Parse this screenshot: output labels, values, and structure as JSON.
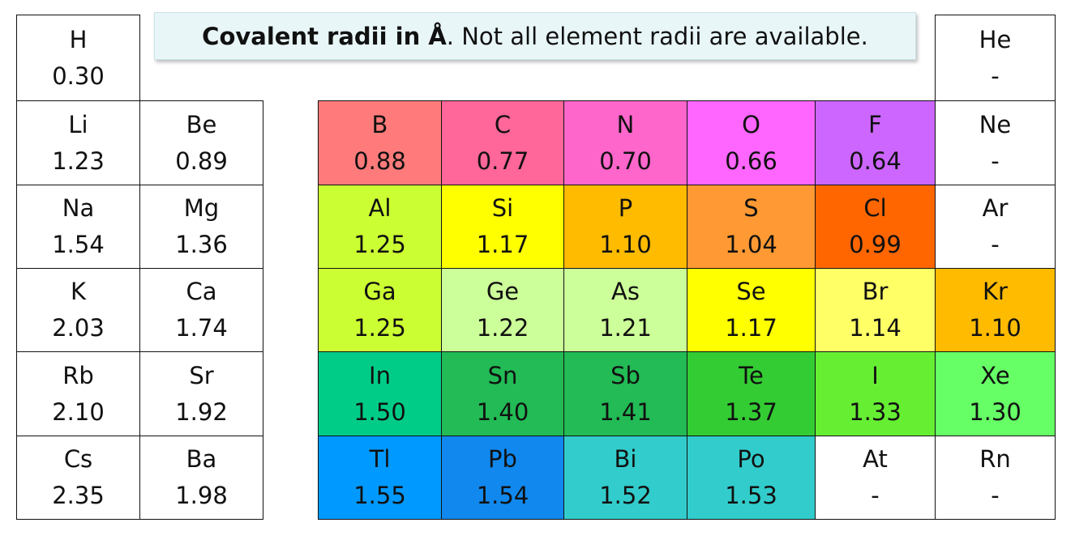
{
  "caption": {
    "bold": "Covalent radii in Å",
    "rest": ". Not all element radii are available."
  },
  "cells": [
    {
      "sym": "H",
      "val": "0.30",
      "col": 0,
      "row": 0,
      "color": "#ffffff"
    },
    {
      "sym": "He",
      "val": "-",
      "col": 8,
      "row": 0,
      "color": "#ffffff"
    },
    {
      "sym": "Li",
      "val": "1.23",
      "col": 0,
      "row": 1,
      "color": "#ffffff"
    },
    {
      "sym": "Be",
      "val": "0.89",
      "col": 1,
      "row": 1,
      "color": "#ffffff"
    },
    {
      "sym": "B",
      "val": "0.88",
      "col": 3,
      "row": 1,
      "color": "#ff7b7b"
    },
    {
      "sym": "C",
      "val": "0.77",
      "col": 4,
      "row": 1,
      "color": "#ff6699"
    },
    {
      "sym": "N",
      "val": "0.70",
      "col": 5,
      "row": 1,
      "color": "#ff66cc"
    },
    {
      "sym": "O",
      "val": "0.66",
      "col": 6,
      "row": 1,
      "color": "#ff66ff"
    },
    {
      "sym": "F",
      "val": "0.64",
      "col": 7,
      "row": 1,
      "color": "#cc66ff"
    },
    {
      "sym": "Ne",
      "val": "-",
      "col": 8,
      "row": 1,
      "color": "#ffffff"
    },
    {
      "sym": "Na",
      "val": "1.54",
      "col": 0,
      "row": 2,
      "color": "#ffffff"
    },
    {
      "sym": "Mg",
      "val": "1.36",
      "col": 1,
      "row": 2,
      "color": "#ffffff"
    },
    {
      "sym": "Al",
      "val": "1.25",
      "col": 3,
      "row": 2,
      "color": "#ccff33"
    },
    {
      "sym": "Si",
      "val": "1.17",
      "col": 4,
      "row": 2,
      "color": "#ffff00"
    },
    {
      "sym": "P",
      "val": "1.10",
      "col": 5,
      "row": 2,
      "color": "#ffbb00"
    },
    {
      "sym": "S",
      "val": "1.04",
      "col": 6,
      "row": 2,
      "color": "#ff9933"
    },
    {
      "sym": "Cl",
      "val": "0.99",
      "col": 7,
      "row": 2,
      "color": "#ff6600"
    },
    {
      "sym": "Ar",
      "val": "-",
      "col": 8,
      "row": 2,
      "color": "#ffffff"
    },
    {
      "sym": "K",
      "val": "2.03",
      "col": 0,
      "row": 3,
      "color": "#ffffff"
    },
    {
      "sym": "Ca",
      "val": "1.74",
      "col": 1,
      "row": 3,
      "color": "#ffffff"
    },
    {
      "sym": "Ga",
      "val": "1.25",
      "col": 3,
      "row": 3,
      "color": "#ccff33"
    },
    {
      "sym": "Ge",
      "val": "1.22",
      "col": 4,
      "row": 3,
      "color": "#ccff99"
    },
    {
      "sym": "As",
      "val": "1.21",
      "col": 5,
      "row": 3,
      "color": "#ccff99"
    },
    {
      "sym": "Se",
      "val": "1.17",
      "col": 6,
      "row": 3,
      "color": "#ffff00"
    },
    {
      "sym": "Br",
      "val": "1.14",
      "col": 7,
      "row": 3,
      "color": "#ffff66"
    },
    {
      "sym": "Kr",
      "val": "1.10",
      "col": 8,
      "row": 3,
      "color": "#ffbb00"
    },
    {
      "sym": "Rb",
      "val": "2.10",
      "col": 0,
      "row": 4,
      "color": "#ffffff"
    },
    {
      "sym": "Sr",
      "val": "1.92",
      "col": 1,
      "row": 4,
      "color": "#ffffff"
    },
    {
      "sym": "In",
      "val": "1.50",
      "col": 3,
      "row": 4,
      "color": "#00cc88"
    },
    {
      "sym": "Sn",
      "val": "1.40",
      "col": 4,
      "row": 4,
      "color": "#22bb55"
    },
    {
      "sym": "Sb",
      "val": "1.41",
      "col": 5,
      "row": 4,
      "color": "#22bb55"
    },
    {
      "sym": "Te",
      "val": "1.37",
      "col": 6,
      "row": 4,
      "color": "#33cc33"
    },
    {
      "sym": "I",
      "val": "1.33",
      "col": 7,
      "row": 4,
      "color": "#66ee33"
    },
    {
      "sym": "Xe",
      "val": "1.30",
      "col": 8,
      "row": 4,
      "color": "#66ff66"
    },
    {
      "sym": "Cs",
      "val": "2.35",
      "col": 0,
      "row": 5,
      "color": "#ffffff"
    },
    {
      "sym": "Ba",
      "val": "1.98",
      "col": 1,
      "row": 5,
      "color": "#ffffff"
    },
    {
      "sym": "Tl",
      "val": "1.55",
      "col": 3,
      "row": 5,
      "color": "#0099ff"
    },
    {
      "sym": "Pb",
      "val": "1.54",
      "col": 4,
      "row": 5,
      "color": "#1188ee"
    },
    {
      "sym": "Bi",
      "val": "1.52",
      "col": 5,
      "row": 5,
      "color": "#33cccc"
    },
    {
      "sym": "Po",
      "val": "1.53",
      "col": 6,
      "row": 5,
      "color": "#33cccc"
    },
    {
      "sym": "At",
      "val": "-",
      "col": 7,
      "row": 5,
      "color": "#ffffff"
    },
    {
      "sym": "Rn",
      "val": "-",
      "col": 8,
      "row": 5,
      "color": "#ffffff"
    }
  ]
}
